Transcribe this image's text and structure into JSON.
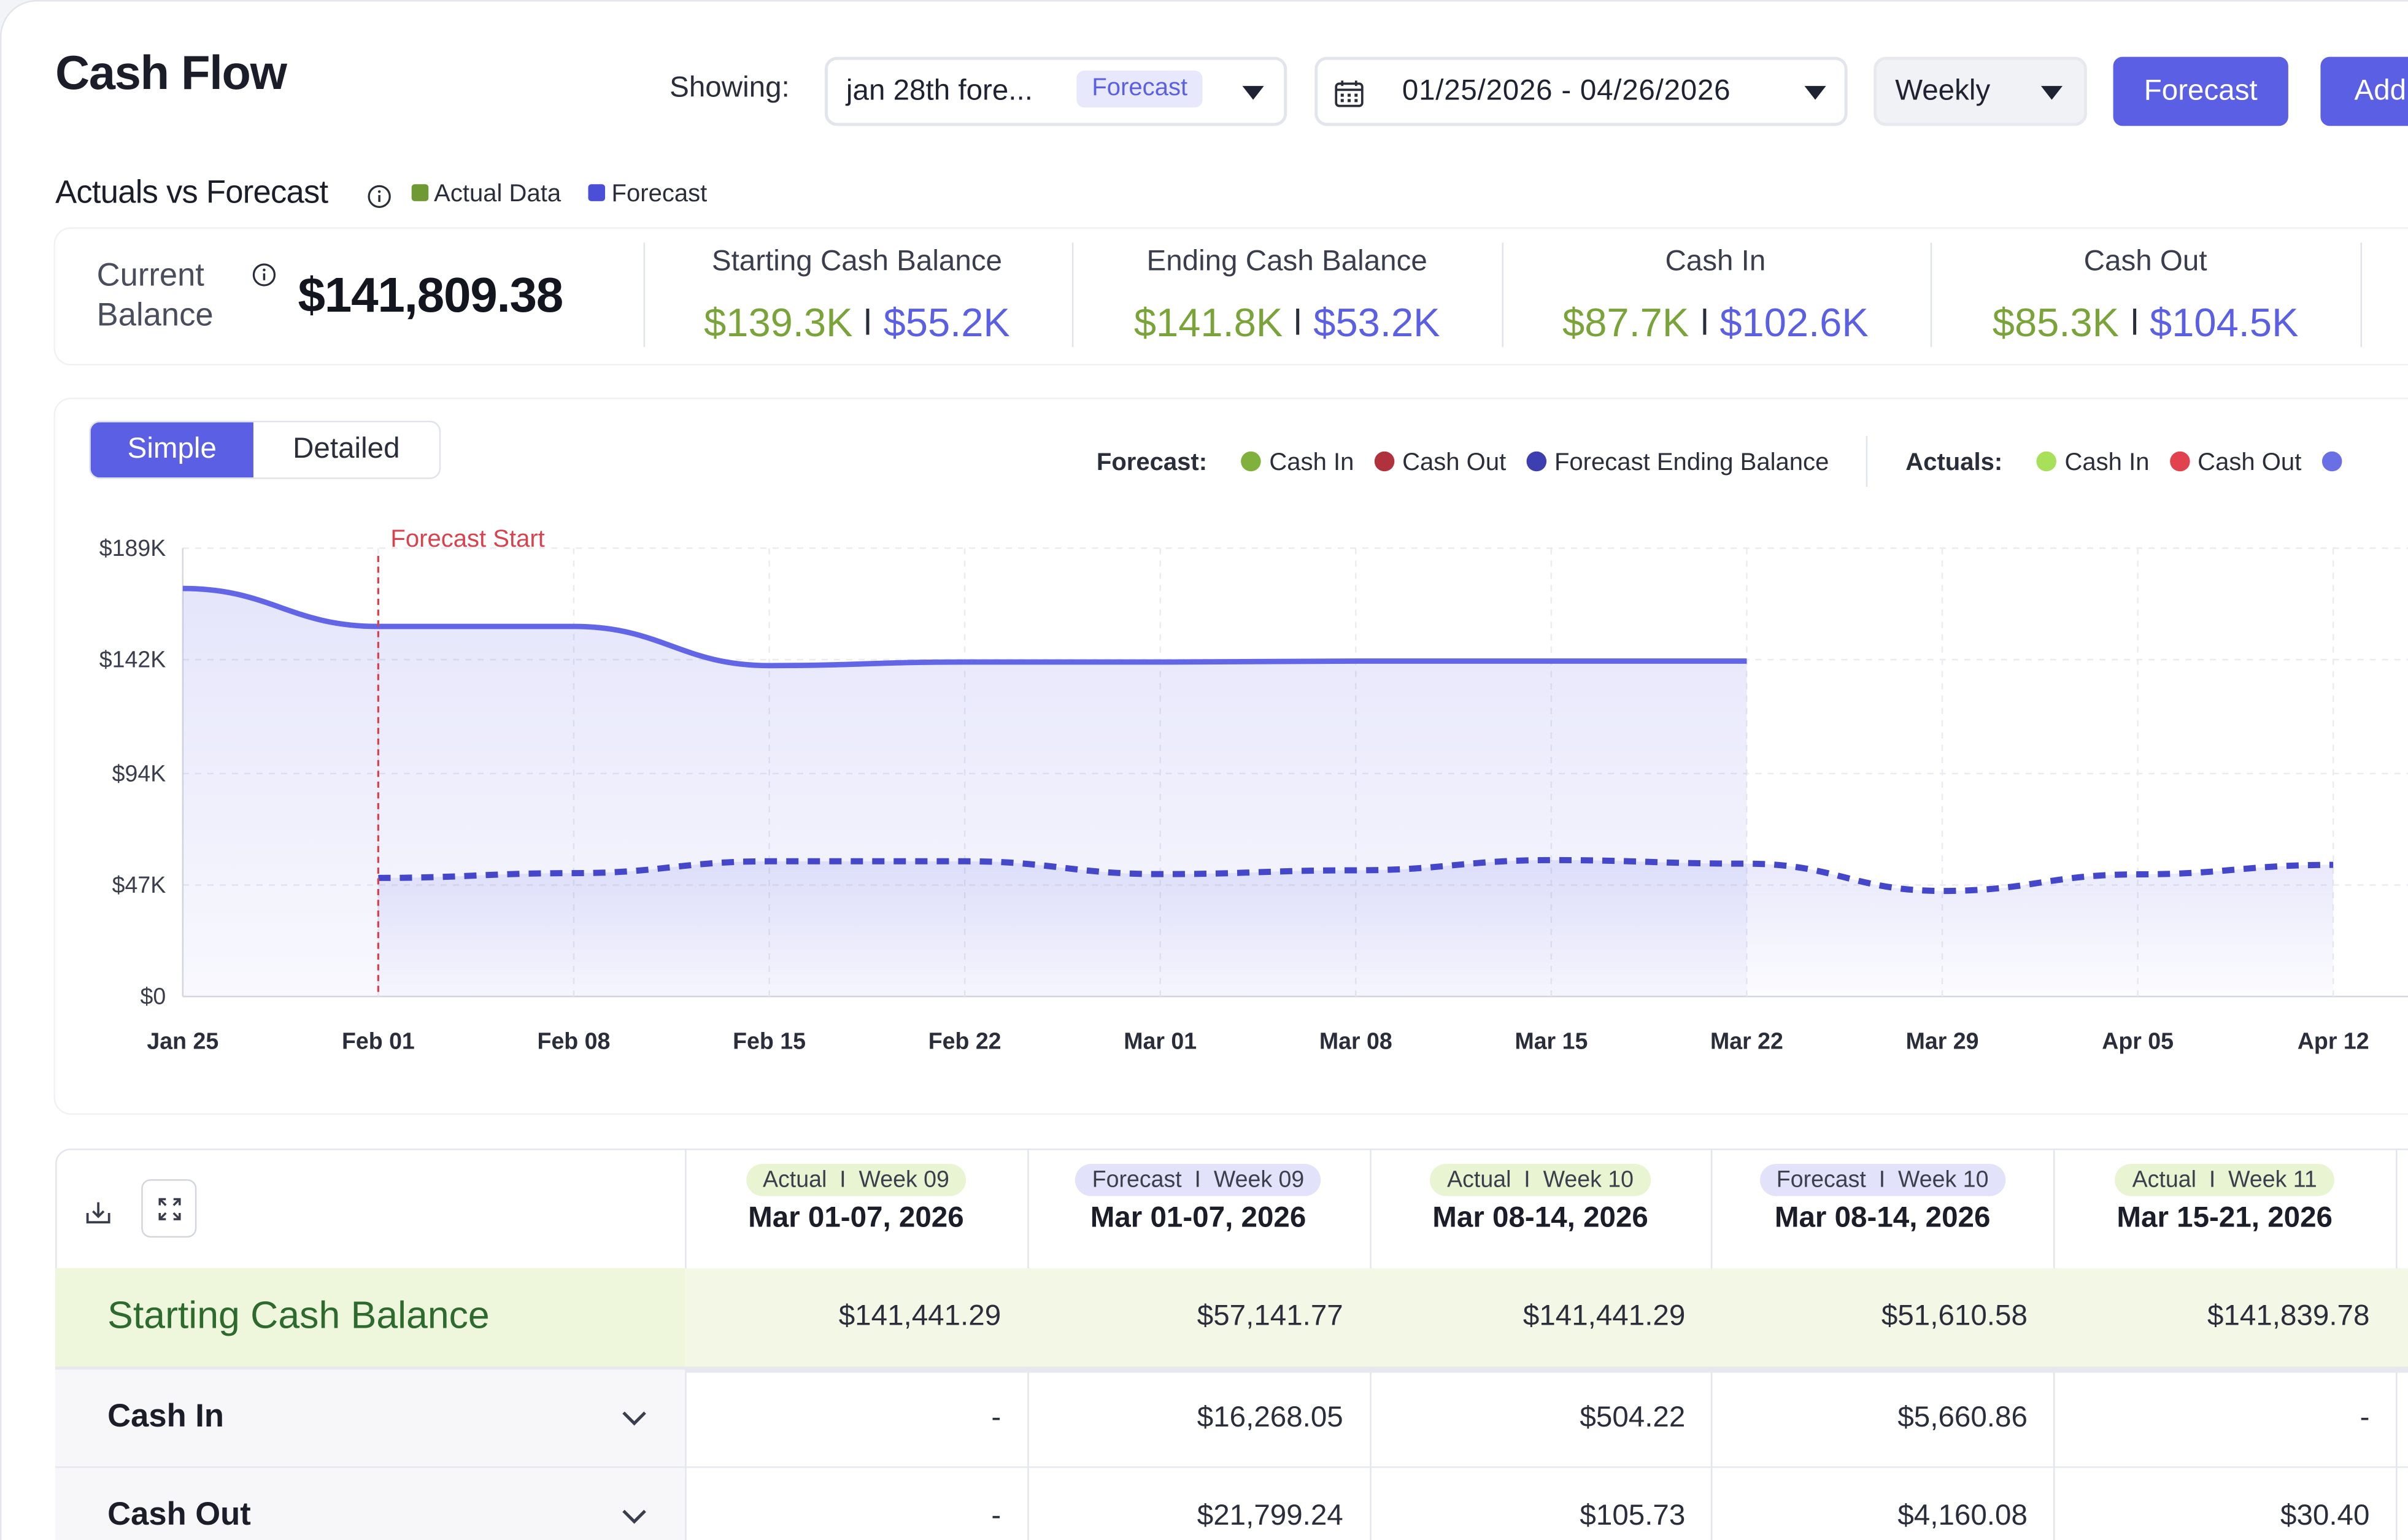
{
  "header": {
    "title": "Cash Flow",
    "showing_label": "Showing:",
    "forecast_select": {
      "value": "jan 28th fore...",
      "badge": "Forecast"
    },
    "date_range": "01/25/2026 - 04/26/2026",
    "period": "Weekly",
    "forecast_button": "Forecast",
    "add_button": "Add"
  },
  "summary": {
    "title": "Actuals vs Forecast",
    "legend": {
      "actual": "Actual Data",
      "forecast": "Forecast"
    },
    "current_balance_label_1": "Current",
    "current_balance_label_2": "Balance",
    "current_balance": "$141,809.38",
    "stats": [
      {
        "label": "Starting Cash Balance",
        "actual": "$139.3K",
        "forecast": "$55.2K"
      },
      {
        "label": "Ending Cash Balance",
        "actual": "$141.8K",
        "forecast": "$53.2K"
      },
      {
        "label": "Cash In",
        "actual": "$87.7K",
        "forecast": "$102.6K"
      },
      {
        "label": "Cash Out",
        "actual": "$85.3K",
        "forecast": "$104.5K"
      }
    ]
  },
  "chart_panel": {
    "tabs": {
      "simple": "Simple",
      "detailed": "Detailed"
    },
    "legend": {
      "forecast_label": "Forecast:",
      "forecast_items": [
        "Cash In",
        "Cash Out",
        "Forecast Ending Balance"
      ],
      "actuals_label": "Actuals:",
      "actuals_items": [
        "Cash In",
        "Cash Out"
      ]
    },
    "forecast_start_label": "Forecast Start"
  },
  "colors": {
    "accent": "#5b5fe4",
    "actual_green": "#7aa33a",
    "forecast_cash_in": "#7fb13c",
    "forecast_cash_out": "#b0323c",
    "forecast_ending": "#3d3fb0",
    "actual_cash_in": "#a8e05a",
    "actual_cash_out": "#e2424e"
  },
  "chart_data": {
    "type": "line",
    "ylim": [
      0,
      189000
    ],
    "yticks": [
      "$0",
      "$47K",
      "$94K",
      "$142K",
      "$189K"
    ],
    "ytick_values": [
      0,
      47000,
      94000,
      142000,
      189000
    ],
    "x": [
      "Jan 25",
      "Feb 01",
      "Feb 08",
      "Feb 15",
      "Feb 22",
      "Mar 01",
      "Mar 08",
      "Mar 15",
      "Mar 22",
      "Mar 29",
      "Apr 05",
      "Apr 12"
    ],
    "forecast_start": "Feb 01",
    "grid": true,
    "series": [
      {
        "name": "Actuals",
        "style": "solid",
        "x": [
          "Jan 25",
          "Feb 01",
          "Feb 08",
          "Feb 15",
          "Feb 22",
          "Mar 01",
          "Mar 08",
          "Mar 15",
          "Mar 22"
        ],
        "values": [
          172000,
          156000,
          156000,
          139500,
          141000,
          141000,
          141400,
          141400,
          141400
        ]
      },
      {
        "name": "Forecast Ending Balance",
        "style": "dashed",
        "x": [
          "Feb 01",
          "Feb 08",
          "Feb 15",
          "Feb 22",
          "Mar 01",
          "Mar 08",
          "Mar 15",
          "Mar 22",
          "Mar 29",
          "Apr 05",
          "Apr 12"
        ],
        "values": [
          50000,
          52000,
          57000,
          57000,
          51600,
          53200,
          57500,
          56000,
          44500,
          51500,
          55500
        ]
      }
    ]
  },
  "table": {
    "columns": [
      {
        "tag_type": "Actual",
        "tag_week": "Week 09",
        "date": "Mar 01-07, 2026",
        "kind": "actual"
      },
      {
        "tag_type": "Forecast",
        "tag_week": "Week 09",
        "date": "Mar 01-07, 2026",
        "kind": "forecast"
      },
      {
        "tag_type": "Actual",
        "tag_week": "Week 10",
        "date": "Mar 08-14, 2026",
        "kind": "actual"
      },
      {
        "tag_type": "Forecast",
        "tag_week": "Week 10",
        "date": "Mar 08-14, 2026",
        "kind": "forecast"
      },
      {
        "tag_type": "Actual",
        "tag_week": "Week 11",
        "date": "Mar 15-21, 2026",
        "kind": "actual"
      }
    ],
    "rows": [
      {
        "label": "Starting Cash Balance",
        "values": [
          "$141,441.29",
          "$57,141.77",
          "$141,441.29",
          "$51,610.58",
          "$141,839.78"
        ]
      },
      {
        "label": "Cash In",
        "values": [
          "-",
          "$16,268.05",
          "$504.22",
          "$5,660.86",
          "-"
        ]
      },
      {
        "label": "Cash Out",
        "values": [
          "-",
          "$21,799.24",
          "$105.73",
          "$4,160.08",
          "$30.40"
        ]
      }
    ]
  }
}
